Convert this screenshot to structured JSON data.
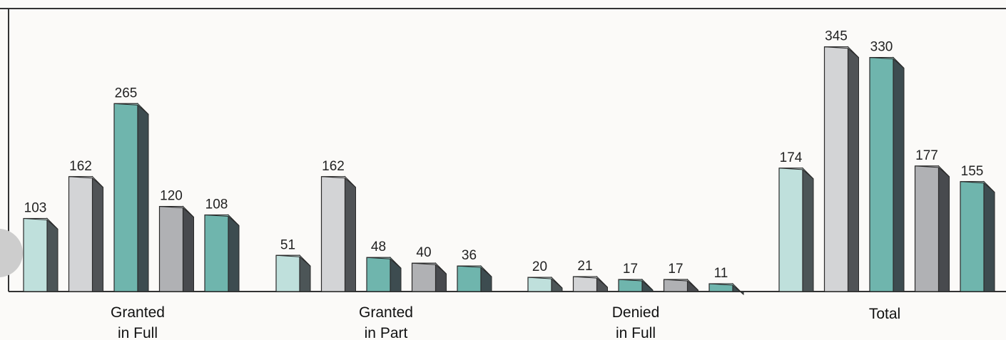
{
  "chart_data": {
    "type": "bar",
    "style": "3d",
    "title": "",
    "xlabel": "",
    "ylabel": "",
    "grid": false,
    "legend": "none",
    "ylim": [
      0,
      380
    ],
    "groups": [
      {
        "label": [
          "Granted",
          "in Full"
        ],
        "values": [
          103,
          162,
          265,
          120,
          108
        ]
      },
      {
        "label": [
          "Granted",
          "in Part"
        ],
        "values": [
          51,
          162,
          48,
          40,
          36
        ]
      },
      {
        "label": [
          "Denied",
          "in Full"
        ],
        "values": [
          20,
          21,
          17,
          17,
          11
        ]
      },
      {
        "label": [
          "Total"
        ],
        "values": [
          174,
          345,
          330,
          177,
          155
        ]
      }
    ],
    "bar_colors": [
      "light-teal",
      "light-gray",
      "teal",
      "gray",
      "teal"
    ]
  },
  "colors": {
    "light-teal": {
      "front": "#bfe0dc",
      "side": "#4c5557",
      "top": "#d9eeeb"
    },
    "light-gray": {
      "front": "#d3d4d6",
      "side": "#505356",
      "top": "#e6e7e8"
    },
    "teal": {
      "front": "#6fb5ad",
      "side": "#3d4c50",
      "top": "#a3d2cc"
    },
    "gray": {
      "front": "#b0b1b4",
      "side": "#484a4e",
      "top": "#cdced0"
    },
    "frame": "#333333",
    "page": "#fbfaf8"
  }
}
